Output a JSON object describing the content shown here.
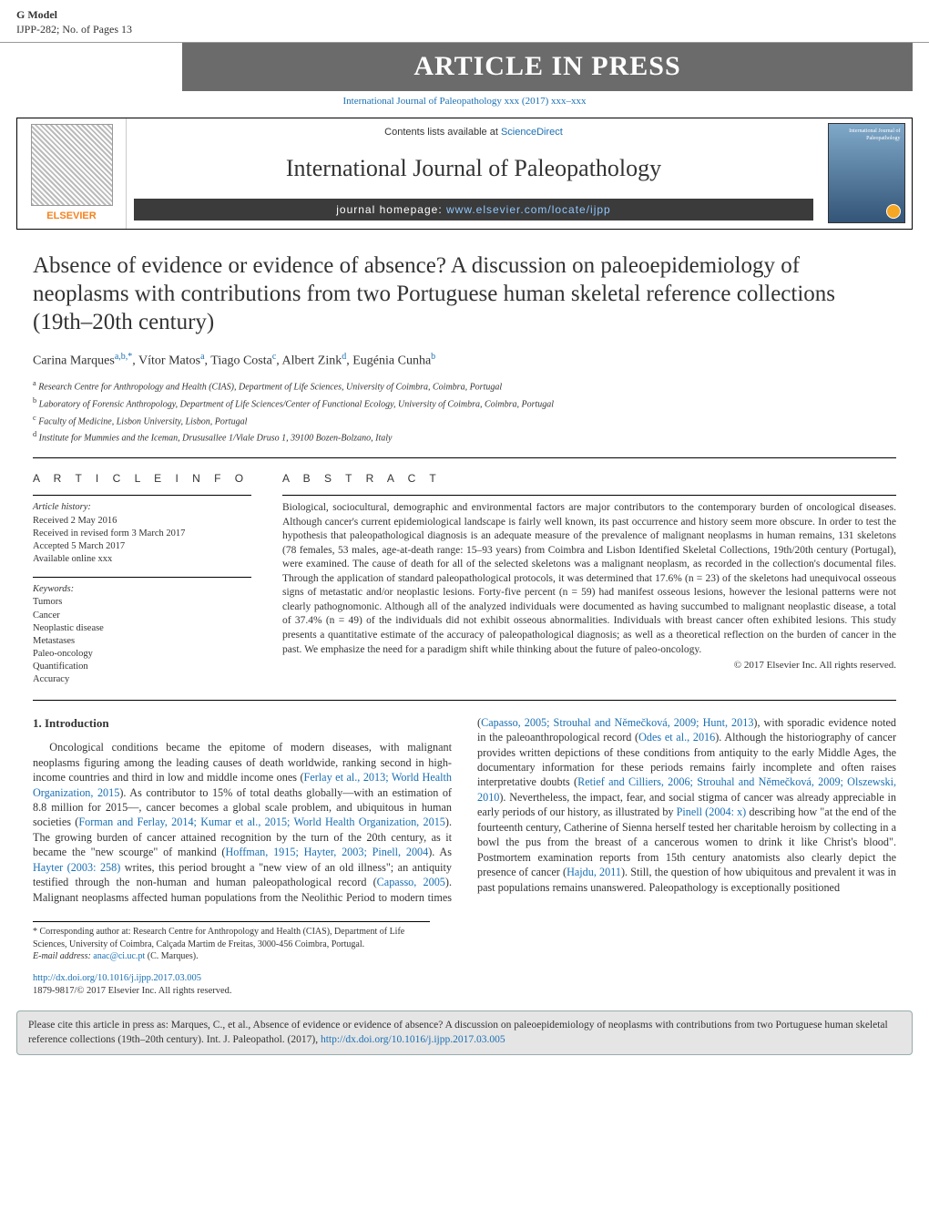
{
  "header": {
    "gmodel": "G Model",
    "ref": "IJPP-282;   No. of Pages 13",
    "press_banner": "ARTICLE IN PRESS",
    "doi_citation": "International Journal of Paleopathology xxx (2017) xxx–xxx"
  },
  "journal_band": {
    "contents_prefix": "Contents lists available at ",
    "contents_link": "ScienceDirect",
    "journal_name": "International Journal of Paleopathology",
    "homepage_prefix": "journal homepage: ",
    "homepage_link": "www.elsevier.com/locate/ijpp",
    "publisher": "ELSEVIER",
    "cover_label": "International Journal of Paleopathology"
  },
  "title": "Absence of evidence or evidence of absence? A discussion on paleoepidemiology of neoplasms with contributions from two Portuguese human skeletal reference collections (19th–20th century)",
  "authors_line": {
    "a1": {
      "name": "Carina Marques",
      "sup": "a,b,*"
    },
    "a2": {
      "name": "Vítor Matos",
      "sup": "a"
    },
    "a3": {
      "name": "Tiago Costa",
      "sup": "c"
    },
    "a4": {
      "name": "Albert Zink",
      "sup": "d"
    },
    "a5": {
      "name": "Eugénia Cunha",
      "sup": "b"
    }
  },
  "affiliations": {
    "a": "Research Centre for Anthropology and Health (CIAS), Department of Life Sciences, University of Coimbra, Coimbra, Portugal",
    "b": "Laboratory of Forensic Anthropology, Department of Life Sciences/Center of Functional Ecology, University of Coimbra, Coimbra, Portugal",
    "c": "Faculty of Medicine, Lisbon University, Lisbon, Portugal",
    "d": "Institute for Mummies and the Iceman, Drususallee 1/Viale Druso 1, 39100 Bozen-Bolzano, Italy"
  },
  "article_info": {
    "heading": "A R T I C L E   I N F O",
    "history_label": "Article history:",
    "received": "Received 2 May 2016",
    "revised": "Received in revised form 3 March 2017",
    "accepted": "Accepted 5 March 2017",
    "online": "Available online xxx",
    "keywords_label": "Keywords:",
    "keywords": [
      "Tumors",
      "Cancer",
      "Neoplastic disease",
      "Metastases",
      "Paleo-oncology",
      "Quantification",
      "Accuracy"
    ]
  },
  "abstract": {
    "heading": "A B S T R A C T",
    "text": "Biological, sociocultural, demographic and environmental factors are major contributors to the contemporary burden of oncological diseases. Although cancer's current epidemiological landscape is fairly well known, its past occurrence and history seem more obscure. In order to test the hypothesis that paleopathological diagnosis is an adequate measure of the prevalence of malignant neoplasms in human remains, 131 skeletons (78 females, 53 males, age-at-death range: 15–93 years) from Coimbra and Lisbon Identified Skeletal Collections, 19th/20th century (Portugal), were examined. The cause of death for all of the selected skeletons was a malignant neoplasm, as recorded in the collection's documental files. Through the application of standard paleopathological protocols, it was determined that 17.6% (n = 23) of the skeletons had unequivocal osseous signs of metastatic and/or neoplastic lesions. Forty-five percent (n = 59) had manifest osseous lesions, however the lesional patterns were not clearly pathognomonic. Although all of the analyzed individuals were documented as having succumbed to malignant neoplastic disease, a total of 37.4% (n = 49) of the individuals did not exhibit osseous abnormalities. Individuals with breast cancer often exhibited lesions. This study presents a quantitative estimate of the accuracy of paleopathological diagnosis; as well as a theoretical reflection on the burden of cancer in the past. We emphasize the need for a paradigm shift while thinking about the future of paleo-oncology.",
    "copyright": "© 2017 Elsevier Inc. All rights reserved."
  },
  "intro": {
    "heading": "1.  Introduction",
    "para1_a": "Oncological conditions became the epitome of modern diseases, with malignant neoplasms figuring among the leading causes of death worldwide, ranking second in high-income countries and third in low and middle income ones (",
    "ref1": "Ferlay et al., 2013; World Health Organization, 2015",
    "para1_b": "). As contributor to 15% of total deaths globally—with an estimation of 8.8 million for 2015—, cancer becomes a global scale problem, and ubiquitous in human societies (",
    "ref2": "Forman and Ferlay, 2014; Kumar et al., 2015; World Health Organization, 2015",
    "para1_c": "). The growing burden of cancer attained recognition by the turn of the 20th century, as it became the \"new scourge\" of mankind (",
    "ref3": "Hoffman, 1915; Hayter, 2003; Pinell, 2004",
    "para1_d": "). As ",
    "ref4": "Hayter (2003: 258)",
    "para1_e": " writes, this period brought a \"new view",
    "para2_a": "of an old illness\"; an antiquity testified through the non-human and human paleopathological record (",
    "ref5": "Capasso, 2005",
    "para2_b": "). Malignant neoplasms affected human populations from the Neolithic Period to modern times (",
    "ref6": "Capasso, 2005; Strouhal and Němečková, 2009; Hunt, 2013",
    "para2_c": "), with sporadic evidence noted in the paleoanthropological record (",
    "ref7": "Odes et al., 2016",
    "para2_d": "). Although the historiography of cancer provides written depictions of these conditions from antiquity to the early Middle Ages, the documentary information for these periods remains fairly incomplete and often raises interpretative doubts (",
    "ref8": "Retief and Cilliers, 2006; Strouhal and Němečková, 2009; Olszewski, 2010",
    "para2_e": "). Nevertheless, the impact, fear, and social stigma of cancer was already appreciable in early periods of our history, as illustrated by ",
    "ref9": "Pinell (2004: x)",
    "para2_f": " describing how \"at the end of the fourteenth century, Catherine of Sienna herself tested her charitable heroism by collecting in a bowl the pus from the breast of a cancerous women to drink it like Christ's blood\". Postmortem examination reports from 15th century anatomists also clearly depict the presence of cancer (",
    "ref10": "Hajdu, 2011",
    "para2_g": "). Still, the question of how ubiquitous and prevalent it was in past populations remains unanswered. Paleopathology is exceptionally positioned"
  },
  "footnotes": {
    "corr": "* Corresponding author at: Research Centre for Anthropology and Health (CIAS), Department of Life Sciences, University of Coimbra, Calçada Martim de Freitas, 3000-456 Coimbra, Portugal.",
    "email_label": "E-mail address: ",
    "email": "anac@ci.uc.pt",
    "email_after": " (C. Marques)."
  },
  "pub": {
    "doi": "http://dx.doi.org/10.1016/j.ijpp.2017.03.005",
    "issn_line": "1879-9817/© 2017 Elsevier Inc. All rights reserved."
  },
  "cite_box": {
    "text_a": "Please cite this article in press as: Marques, C., et al., Absence of evidence or evidence of absence? A discussion on paleoepidemiology of neoplasms with contributions from two Portuguese human skeletal reference collections (19th–20th century). Int. J. Paleopathol. (2017), ",
    "link": "http://dx.doi.org/10.1016/j.ijpp.2017.03.005"
  },
  "colors": {
    "link": "#1a6fb3",
    "banner_bg": "#6b6b6b",
    "homepage_bg": "#3b3b3b",
    "elsevier_orange": "#f58220",
    "citebox_bg": "#e5e5e5"
  }
}
